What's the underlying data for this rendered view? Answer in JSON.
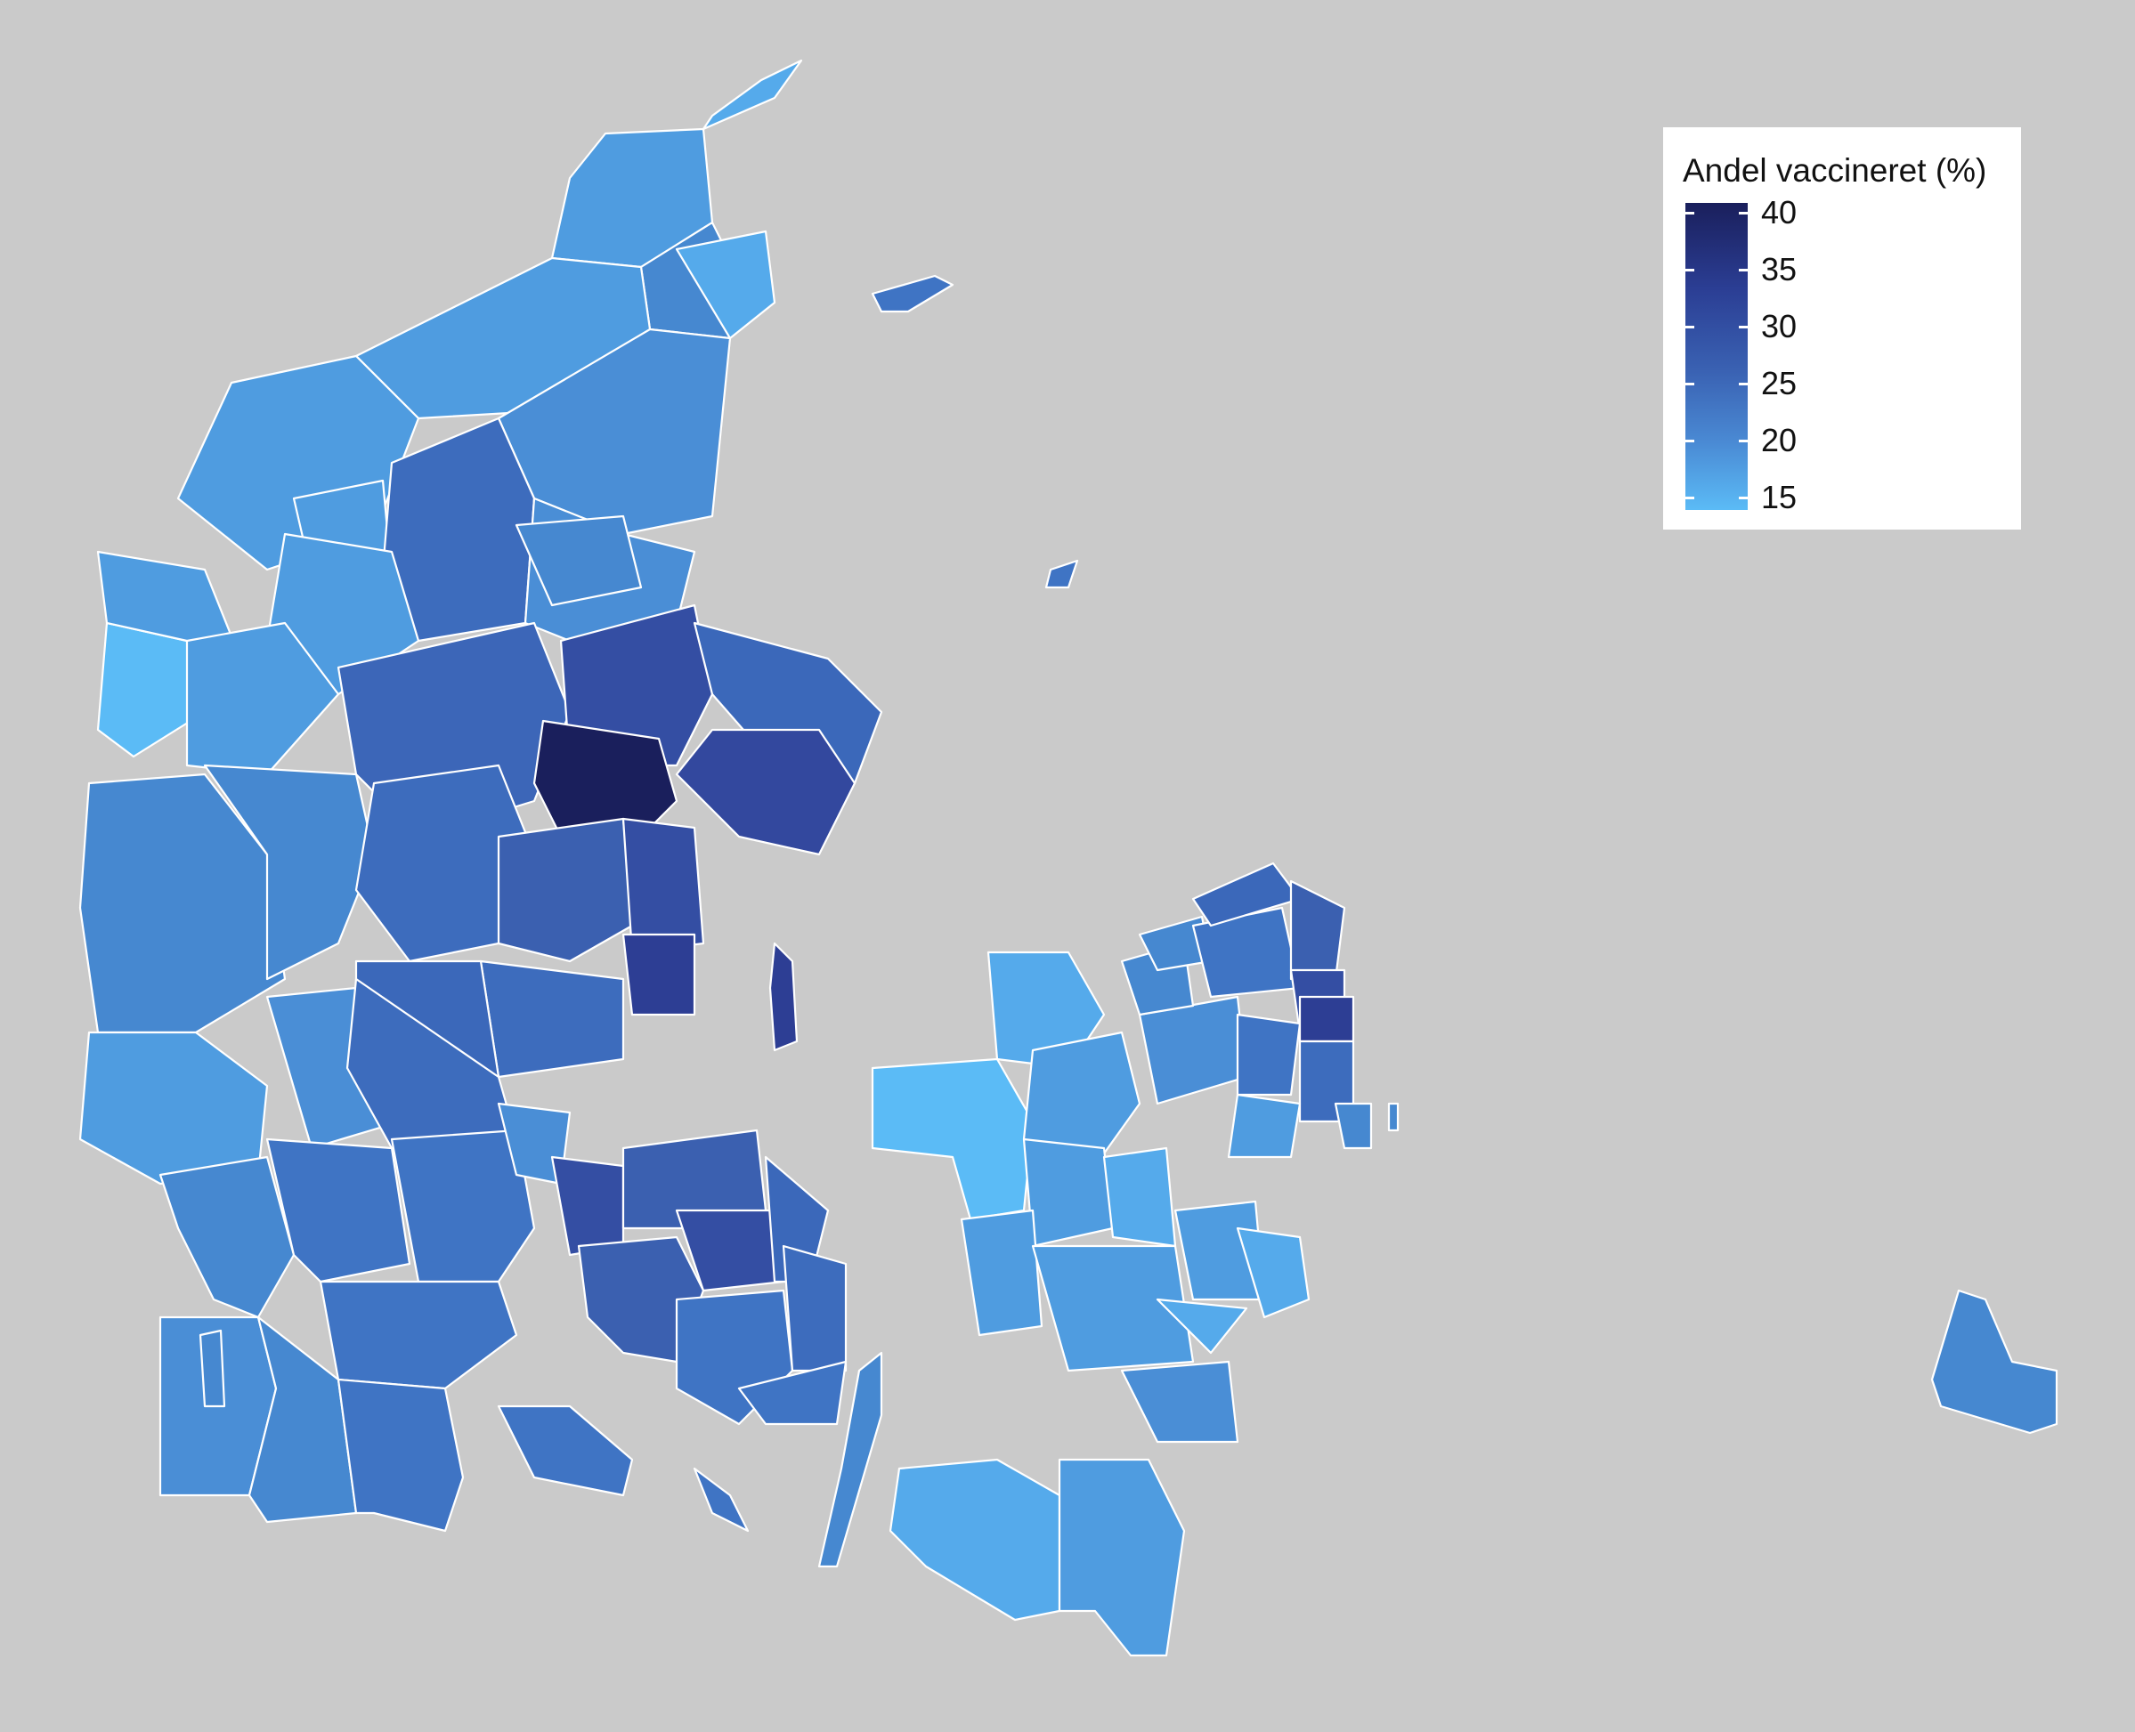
{
  "map": {
    "background_color": "#cacaca",
    "border_color": "#ffffff"
  },
  "legend": {
    "title": "Andel vaccineret (%)",
    "labels": [
      "40",
      "35",
      "30",
      "25",
      "20",
      "15"
    ],
    "color_scale": {
      "min_value": 15,
      "max_value": 40,
      "low_color": "#5bbbf6",
      "high_color": "#1a1f5c"
    }
  }
}
